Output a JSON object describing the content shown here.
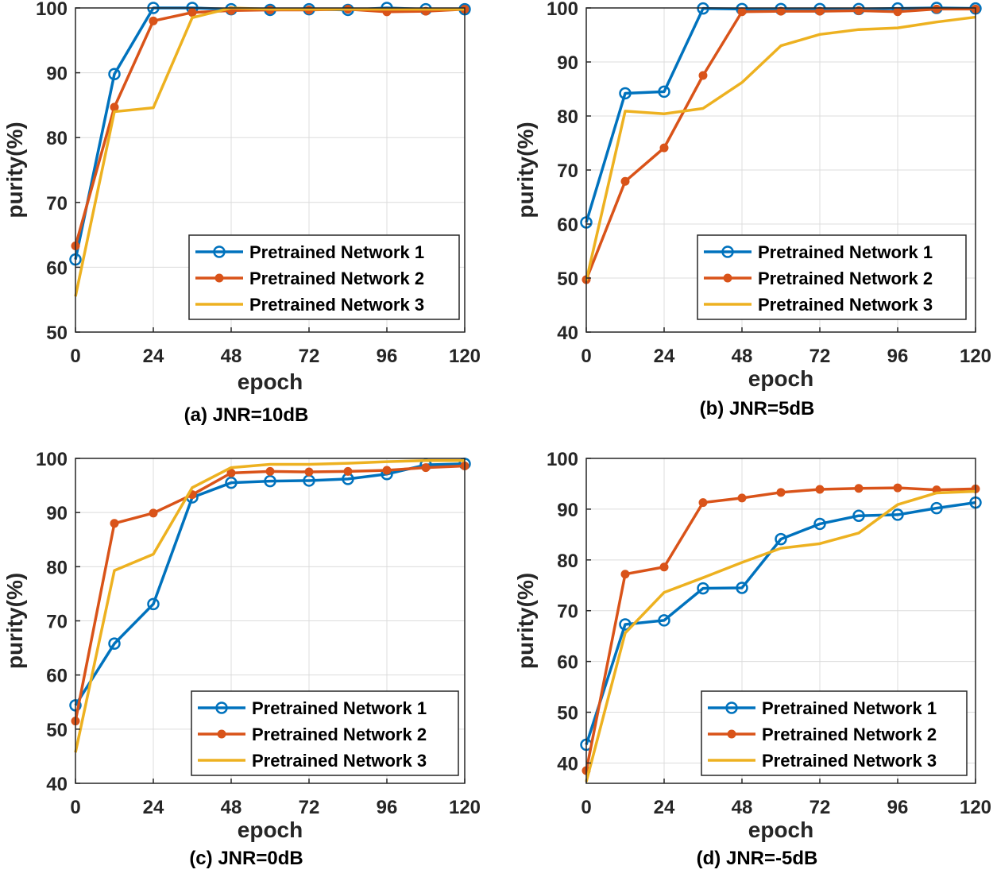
{
  "chart_data": [
    {
      "type": "line",
      "caption": "(a) JNR=10dB",
      "xlabel": "epoch",
      "ylabel": "purity(%)",
      "xlim": [
        0,
        120
      ],
      "ylim": [
        50,
        100
      ],
      "xticks": [
        0,
        24,
        48,
        72,
        96,
        120
      ],
      "yticks": [
        50,
        60,
        70,
        80,
        90,
        100
      ],
      "grid": true,
      "legend_position": "bottom-right",
      "x": [
        0,
        12,
        24,
        36,
        48,
        60,
        72,
        84,
        96,
        108,
        120
      ],
      "series": [
        {
          "name": "Pretrained Network 1",
          "color": "#0072BD",
          "marker": "circle",
          "values": [
            61.2,
            89.8,
            100,
            100,
            99.8,
            99.7,
            99.8,
            99.7,
            100,
            99.8,
            99.8
          ]
        },
        {
          "name": "Pretrained Network 2",
          "color": "#D95319",
          "marker": "star",
          "values": [
            63.3,
            84.7,
            98,
            99.3,
            99.6,
            99.7,
            99.7,
            99.8,
            99.4,
            99.5,
            99.8
          ]
        },
        {
          "name": "Pretrained Network 3",
          "color": "#EDB120",
          "marker": "none",
          "values": [
            55.5,
            84,
            84.6,
            98.5,
            100,
            99.8,
            99.8,
            99.8,
            99.8,
            99.8,
            99.8
          ]
        }
      ]
    },
    {
      "type": "line",
      "caption": "(b) JNR=5dB",
      "xlabel": "epoch",
      "ylabel": "purity(%)",
      "xlim": [
        0,
        120
      ],
      "ylim": [
        40,
        100
      ],
      "xticks": [
        0,
        24,
        48,
        72,
        96,
        120
      ],
      "yticks": [
        40,
        50,
        60,
        70,
        80,
        90,
        100
      ],
      "grid": true,
      "legend_position": "bottom-right",
      "x": [
        0,
        12,
        24,
        36,
        48,
        60,
        72,
        84,
        96,
        108,
        120
      ],
      "series": [
        {
          "name": "Pretrained Network 1",
          "color": "#0072BD",
          "marker": "circle",
          "values": [
            60.3,
            84.2,
            84.5,
            99.9,
            99.8,
            99.8,
            99.8,
            99.8,
            99.9,
            100,
            99.9
          ]
        },
        {
          "name": "Pretrained Network 2",
          "color": "#D95319",
          "marker": "star",
          "values": [
            49.7,
            67.9,
            74.1,
            87.5,
            99.3,
            99.4,
            99.4,
            99.5,
            99.3,
            99.8,
            99.8
          ]
        },
        {
          "name": "Pretrained Network 3",
          "color": "#EDB120",
          "marker": "none",
          "values": [
            49.5,
            80.9,
            80.4,
            81.4,
            86.2,
            93,
            95.1,
            96,
            96.3,
            97.4,
            98.3
          ]
        }
      ]
    },
    {
      "type": "line",
      "caption": "(c) JNR=0dB",
      "xlabel": "epoch",
      "ylabel": "purity(%)",
      "xlim": [
        0,
        120
      ],
      "ylim": [
        40,
        100
      ],
      "xticks": [
        0,
        24,
        48,
        72,
        96,
        120
      ],
      "yticks": [
        40,
        50,
        60,
        70,
        80,
        90,
        100
      ],
      "grid": true,
      "legend_position": "bottom-right",
      "x": [
        0,
        12,
        24,
        36,
        48,
        60,
        72,
        84,
        96,
        108,
        120
      ],
      "series": [
        {
          "name": "Pretrained Network 1",
          "color": "#0072BD",
          "marker": "circle",
          "values": [
            54.4,
            65.8,
            73.1,
            92.8,
            95.5,
            95.8,
            95.9,
            96.2,
            97.1,
            98.8,
            99
          ]
        },
        {
          "name": "Pretrained Network 2",
          "color": "#D95319",
          "marker": "star",
          "values": [
            51.5,
            88,
            89.9,
            93.3,
            97.3,
            97.6,
            97.5,
            97.6,
            97.8,
            98.3,
            98.6
          ]
        },
        {
          "name": "Pretrained Network 3",
          "color": "#EDB120",
          "marker": "none",
          "values": [
            45.7,
            79.3,
            82.3,
            94.6,
            98.3,
            98.9,
            98.9,
            99.1,
            99.4,
            99.6,
            99.6
          ]
        }
      ]
    },
    {
      "type": "line",
      "caption": "(d) JNR=-5dB",
      "xlabel": "epoch",
      "ylabel": "purity(%)",
      "xlim": [
        0,
        120
      ],
      "ylim": [
        36,
        100
      ],
      "xticks": [
        0,
        24,
        48,
        72,
        96,
        120
      ],
      "yticks": [
        40,
        50,
        60,
        70,
        80,
        90,
        100
      ],
      "grid": true,
      "legend_position": "bottom-right",
      "x": [
        0,
        12,
        24,
        36,
        48,
        60,
        72,
        84,
        96,
        108,
        120
      ],
      "series": [
        {
          "name": "Pretrained Network 1",
          "color": "#0072BD",
          "marker": "circle",
          "values": [
            43.6,
            67.3,
            68.1,
            74.4,
            74.5,
            84.1,
            87.1,
            88.7,
            88.9,
            90.2,
            91.3
          ]
        },
        {
          "name": "Pretrained Network 2",
          "color": "#D95319",
          "marker": "star",
          "values": [
            38.5,
            77.2,
            78.6,
            91.3,
            92.2,
            93.3,
            93.9,
            94.1,
            94.2,
            93.8,
            94
          ]
        },
        {
          "name": "Pretrained Network 3",
          "color": "#EDB120",
          "marker": "none",
          "values": [
            36.3,
            65.6,
            73.6,
            76.5,
            79.5,
            82.3,
            83.2,
            85.3,
            90.9,
            93.2,
            93.5
          ]
        }
      ]
    }
  ]
}
